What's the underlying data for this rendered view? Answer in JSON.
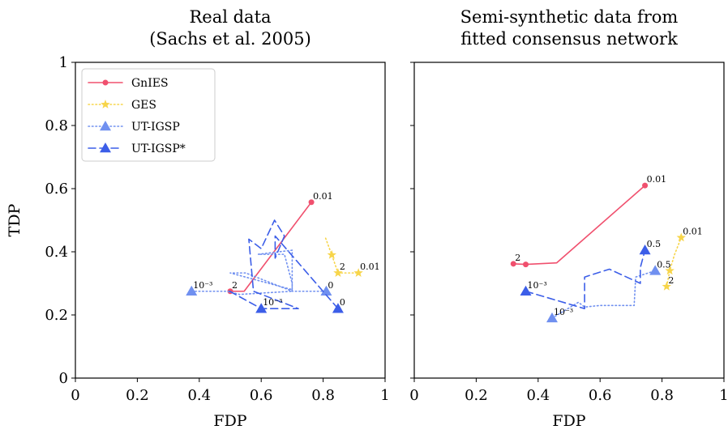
{
  "chart_data": [
    {
      "type": "line",
      "title": [
        "Real data",
        "(Sachs et al. 2005)"
      ],
      "xlabel": "FDP",
      "ylabel": "TDP",
      "xlim": [
        0,
        1
      ],
      "ylim": [
        0,
        1
      ],
      "xticks": [
        "0",
        "0.2",
        "0.4",
        "0.6",
        "0.8",
        "1"
      ],
      "yticks": [
        "0",
        "0.2",
        "0.4",
        "0.6",
        "0.8",
        "1"
      ],
      "grid": false,
      "legend_position": "top-left",
      "legend": [
        "GnIES",
        "GES",
        "UT-IGSP",
        "UT-IGSP*"
      ],
      "series": [
        {
          "name": "GnIES",
          "color": "#f0506e",
          "style": "solid",
          "marker": "circle",
          "markers": [
            {
              "x": 0.5,
              "y": 0.275
            },
            {
              "x": 0.762,
              "y": 0.557
            }
          ],
          "x": [
            0.5,
            0.545,
            0.762
          ],
          "y": [
            0.275,
            0.275,
            0.557
          ]
        },
        {
          "name": "GES",
          "color": "#f7d54a",
          "style": "dotted",
          "marker": "star",
          "markers": [
            {
              "x": 0.828,
              "y": 0.39
            },
            {
              "x": 0.848,
              "y": 0.333
            },
            {
              "x": 0.914,
              "y": 0.333
            }
          ],
          "x": [
            0.808,
            0.828,
            0.848,
            0.914
          ],
          "y": [
            0.443,
            0.39,
            0.333,
            0.333
          ]
        },
        {
          "name": "UT-IGSP",
          "color": "#7090f0",
          "style": "dotted",
          "marker": "triangle",
          "markers": [
            {
              "x": 0.375,
              "y": 0.275
            },
            {
              "x": 0.81,
              "y": 0.275
            }
          ],
          "x": [
            0.375,
            0.49,
            0.53,
            0.7,
            0.7,
            0.59,
            0.675,
            0.7,
            0.7,
            0.5,
            0.55,
            0.7,
            0.81
          ],
          "y": [
            0.275,
            0.275,
            0.265,
            0.275,
            0.405,
            0.392,
            0.392,
            0.3,
            0.28,
            0.333,
            0.333,
            0.275,
            0.275
          ]
        },
        {
          "name": "UT-IGSP*",
          "color": "#3c5ee8",
          "style": "dashed",
          "marker": "triangle",
          "markers": [
            {
              "x": 0.6,
              "y": 0.22
            },
            {
              "x": 0.848,
              "y": 0.22
            }
          ],
          "x": [
            0.498,
            0.6,
            0.72,
            0.575,
            0.56,
            0.6,
            0.643,
            0.675,
            0.645,
            0.645,
            0.848
          ],
          "y": [
            0.275,
            0.22,
            0.22,
            0.275,
            0.44,
            0.41,
            0.5,
            0.45,
            0.38,
            0.45,
            0.22
          ]
        }
      ],
      "annotations": [
        {
          "text": "0.01",
          "x": 0.762,
          "y": 0.557
        },
        {
          "text": "0.01",
          "x": 0.914,
          "y": 0.333
        },
        {
          "text": "2",
          "x": 0.848,
          "y": 0.333
        },
        {
          "text": "2",
          "x": 0.5,
          "y": 0.275
        },
        {
          "text": "10⁻³",
          "x": 0.375,
          "y": 0.275
        },
        {
          "text": "10⁻³",
          "x": 0.6,
          "y": 0.22
        },
        {
          "text": "0",
          "x": 0.81,
          "y": 0.275
        },
        {
          "text": "0",
          "x": 0.848,
          "y": 0.22
        }
      ]
    },
    {
      "type": "line",
      "title": [
        "Semi-synthetic data from",
        "fitted consensus network"
      ],
      "xlabel": "FDP",
      "ylabel": "",
      "xlim": [
        0,
        1
      ],
      "ylim": [
        0,
        1
      ],
      "xticks": [
        "0",
        "0.2",
        "0.4",
        "0.6",
        "0.8",
        "1"
      ],
      "yticks": [],
      "grid": false,
      "series": [
        {
          "name": "GnIES",
          "color": "#f0506e",
          "style": "solid",
          "marker": "circle",
          "markers": [
            {
              "x": 0.32,
              "y": 0.362
            },
            {
              "x": 0.36,
              "y": 0.36
            },
            {
              "x": 0.745,
              "y": 0.61
            }
          ],
          "x": [
            0.32,
            0.36,
            0.46,
            0.745
          ],
          "y": [
            0.362,
            0.36,
            0.365,
            0.61
          ]
        },
        {
          "name": "GES",
          "color": "#f7d54a",
          "style": "dotted",
          "marker": "star",
          "markers": [
            {
              "x": 0.815,
              "y": 0.29
            },
            {
              "x": 0.825,
              "y": 0.34
            },
            {
              "x": 0.862,
              "y": 0.445
            }
          ],
          "x": [
            0.815,
            0.825,
            0.84,
            0.862
          ],
          "y": [
            0.29,
            0.34,
            0.39,
            0.445
          ]
        },
        {
          "name": "UT-IGSP",
          "color": "#7090f0",
          "style": "dotted",
          "marker": "triangle",
          "markers": [
            {
              "x": 0.445,
              "y": 0.19
            },
            {
              "x": 0.778,
              "y": 0.34
            }
          ],
          "x": [
            0.445,
            0.53,
            0.55,
            0.6,
            0.71,
            0.715,
            0.778
          ],
          "y": [
            0.19,
            0.24,
            0.225,
            0.23,
            0.23,
            0.32,
            0.34
          ]
        },
        {
          "name": "UT-IGSP*",
          "color": "#3c5ee8",
          "style": "dashed",
          "marker": "triangle",
          "markers": [
            {
              "x": 0.36,
              "y": 0.275
            },
            {
              "x": 0.745,
              "y": 0.405
            }
          ],
          "x": [
            0.36,
            0.55,
            0.55,
            0.63,
            0.73,
            0.73,
            0.745
          ],
          "y": [
            0.275,
            0.22,
            0.32,
            0.345,
            0.3,
            0.35,
            0.405
          ]
        }
      ],
      "annotations": [
        {
          "text": "0.01",
          "x": 0.745,
          "y": 0.61
        },
        {
          "text": "0.01",
          "x": 0.862,
          "y": 0.445
        },
        {
          "text": "0.5",
          "x": 0.745,
          "y": 0.405
        },
        {
          "text": "0.5",
          "x": 0.778,
          "y": 0.34
        },
        {
          "text": "2",
          "x": 0.32,
          "y": 0.362
        },
        {
          "text": "2",
          "x": 0.815,
          "y": 0.29
        },
        {
          "text": "10⁻³",
          "x": 0.36,
          "y": 0.275
        },
        {
          "text": "10⁻³",
          "x": 0.445,
          "y": 0.19
        }
      ]
    }
  ]
}
